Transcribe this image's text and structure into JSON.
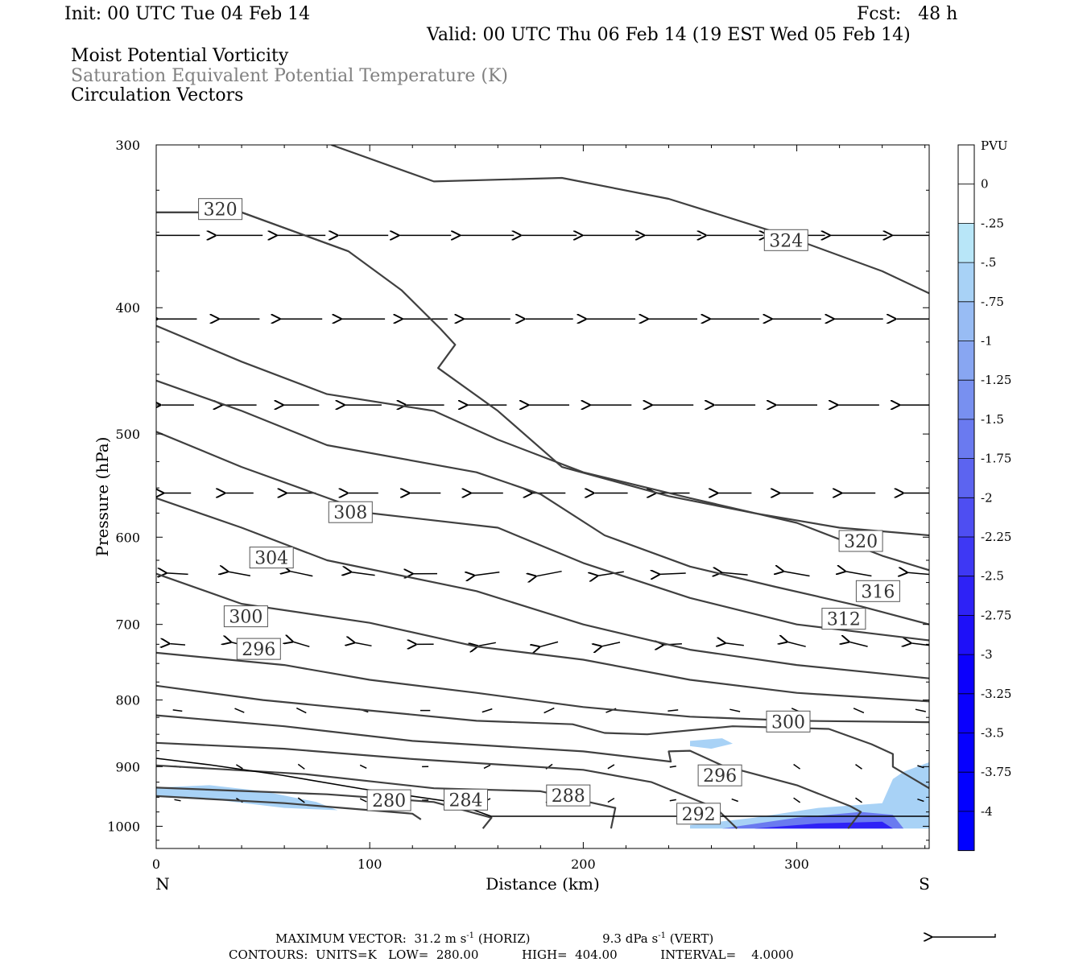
{
  "header": {
    "init": "Init: 00 UTC Tue 04 Feb 14",
    "fcst": "Fcst:   48 h",
    "valid": "Valid: 00 UTC Thu 06 Feb 14 (19 EST Wed 05 Feb 14)",
    "field1": "Moist Potential Vorticity",
    "field2": "Saturation Equivalent Potential Temperature (K)",
    "field3": "Circulation Vectors"
  },
  "colors": {
    "contour": "#404040",
    "mpv_shades": [
      "#b8e6f8",
      "#a8d2f6",
      "#98bcf4",
      "#88a6f2",
      "#7890f0",
      "#6a7af0",
      "#5c64f0",
      "#4e4ef2",
      "#3e38f4",
      "#2e22f6",
      "#1e10f8",
      "#0c00fc"
    ]
  },
  "chart_data": {
    "type": "cross-section",
    "xlabel": "Distance (km)",
    "ylabel": "Pressure (hPa)",
    "xlim": [
      0,
      362
    ],
    "ylim": [
      1040,
      300
    ],
    "y_scale": "log",
    "x_ticks": [
      "0",
      "100",
      "200",
      "300"
    ],
    "y_ticks": [
      "300",
      "400",
      "500",
      "600",
      "700",
      "800",
      "900",
      "1000"
    ],
    "end_labels": {
      "left": "N",
      "right": "S"
    },
    "colorbar": {
      "title": "PVU",
      "labels": [
        "0",
        "-.25",
        "-.5",
        "-.75",
        "-1",
        "-1.25",
        "-1.5",
        "-1.75",
        "-2",
        "-2.25",
        "-2.5",
        "-2.75",
        "-3",
        "-3.25",
        "-3.5",
        "-3.75",
        "-4"
      ]
    },
    "theta_es_contours": [
      {
        "label": "280",
        "points": [
          [
            0,
            948
          ],
          [
            60,
            960
          ],
          [
            120,
            978
          ],
          [
            124,
            988
          ]
        ],
        "label_at": [
          109,
          955
        ]
      },
      {
        "label": "284",
        "points": [
          [
            0,
            934
          ],
          [
            80,
            945
          ],
          [
            130,
            958
          ],
          [
            157,
            985
          ],
          [
            153,
            1004
          ]
        ],
        "label_at": [
          145,
          954
        ]
      },
      {
        "label": "288",
        "points": [
          [
            0,
            898
          ],
          [
            70,
            912
          ],
          [
            130,
            935
          ],
          [
            180,
            940
          ],
          [
            215,
            968
          ],
          [
            213,
            1004
          ]
        ],
        "label_at": [
          193,
          947
        ]
      },
      {
        "label": "292",
        "points": [
          [
            0,
            863
          ],
          [
            60,
            872
          ],
          [
            120,
            888
          ],
          [
            200,
            905
          ],
          [
            232,
            925
          ],
          [
            262,
            968
          ],
          [
            272,
            1004
          ]
        ],
        "label_at": [
          254,
          978
        ]
      },
      {
        "label": "296",
        "points": [
          [
            0,
            822
          ],
          [
            60,
            838
          ],
          [
            120,
            860
          ],
          [
            200,
            876
          ],
          [
            241,
            892
          ],
          [
            240,
            876
          ],
          [
            250,
            875
          ],
          [
            265,
            898
          ],
          [
            300,
            930
          ],
          [
            325,
            965
          ],
          [
            330,
            975
          ],
          [
            324,
            1004
          ]
        ],
        "label_at": [
          264,
          914
        ]
      },
      {
        "label": "300",
        "points": [
          [
            0,
            780
          ],
          [
            50,
            800
          ],
          [
            100,
            815
          ],
          [
            150,
            830
          ],
          [
            195,
            835
          ],
          [
            210,
            848
          ],
          [
            230,
            850
          ],
          [
            270,
            838
          ],
          [
            315,
            842
          ],
          [
            335,
            865
          ],
          [
            345,
            880
          ],
          [
            345,
            900
          ],
          [
            362,
            935
          ]
        ],
        "label_at": [
          296,
          831
        ]
      },
      {
        "label": "296",
        "points": [
          [
            0,
            736
          ],
          [
            60,
            752
          ],
          [
            100,
            772
          ],
          [
            150,
            790
          ],
          [
            200,
            810
          ],
          [
            250,
            824
          ],
          [
            300,
            830
          ],
          [
            362,
            832
          ]
        ],
        "label_at": [
          48,
          731
        ]
      },
      {
        "label": "300",
        "points": [
          [
            0,
            640
          ],
          [
            40,
            675
          ],
          [
            100,
            698
          ],
          [
            150,
            728
          ],
          [
            200,
            745
          ],
          [
            250,
            772
          ],
          [
            300,
            790
          ],
          [
            362,
            802
          ]
        ],
        "label_at": [
          42,
          690
        ]
      },
      {
        "label": "304",
        "points": [
          [
            0,
            560
          ],
          [
            40,
            590
          ],
          [
            80,
            625
          ],
          [
            150,
            660
          ],
          [
            200,
            700
          ],
          [
            250,
            732
          ],
          [
            300,
            752
          ],
          [
            362,
            770
          ]
        ],
        "label_at": [
          54,
          622
        ]
      },
      {
        "label": "308",
        "points": [
          [
            0,
            498
          ],
          [
            40,
            530
          ],
          [
            100,
            575
          ],
          [
            160,
            590
          ],
          [
            200,
            628
          ],
          [
            250,
            668
          ],
          [
            300,
            700
          ],
          [
            362,
            720
          ]
        ],
        "label_at": [
          91,
          574
        ]
      },
      {
        "label": "312",
        "points": [
          [
            0,
            455
          ],
          [
            40,
            480
          ],
          [
            80,
            510
          ],
          [
            150,
            535
          ],
          [
            180,
            556
          ],
          [
            210,
            598
          ],
          [
            250,
            632
          ],
          [
            290,
            655
          ],
          [
            330,
            678
          ],
          [
            362,
            700
          ]
        ],
        "label_at": [
          322,
          693
        ]
      },
      {
        "label": "316",
        "points": [
          [
            0,
            413
          ],
          [
            40,
            440
          ],
          [
            80,
            466
          ],
          [
            130,
            480
          ],
          [
            160,
            505
          ],
          [
            200,
            535
          ],
          [
            250,
            560
          ],
          [
            300,
            585
          ],
          [
            340,
            620
          ],
          [
            362,
            636
          ]
        ],
        "label_at": [
          338,
          660
        ]
      },
      {
        "label": "320",
        "points": [
          [
            0,
            338
          ],
          [
            40,
            338
          ],
          [
            90,
            362
          ],
          [
            115,
            388
          ],
          [
            133,
            415
          ],
          [
            140,
            427
          ],
          [
            132,
            445
          ],
          [
            160,
            480
          ],
          [
            190,
            530
          ],
          [
            240,
            558
          ],
          [
            280,
            575
          ],
          [
            320,
            590
          ],
          [
            362,
            598
          ]
        ],
        "label_at": [
          330,
          604
        ]
      },
      {
        "label": "320",
        "points": [
          [
            0,
            338
          ],
          [
            40,
            338
          ],
          [
            90,
            362
          ]
        ],
        "label_at": [
          30,
          336
        ]
      },
      {
        "label": "324",
        "points": [
          [
            82,
            300
          ],
          [
            130,
            320
          ],
          [
            190,
            318
          ],
          [
            240,
            330
          ],
          [
            290,
            350
          ],
          [
            340,
            375
          ],
          [
            362,
            390
          ]
        ],
        "label_at": [
          295,
          355
        ]
      }
    ],
    "mpv_shading": [
      {
        "value": -0.5,
        "points": [
          [
            0,
            934
          ],
          [
            25,
            930
          ],
          [
            50,
            940
          ],
          [
            75,
            958
          ],
          [
            85,
            972
          ],
          [
            60,
            968
          ],
          [
            30,
            955
          ],
          [
            0,
            948
          ]
        ]
      },
      {
        "value": -0.5,
        "points": [
          [
            250,
            998
          ],
          [
            280,
            985
          ],
          [
            310,
            968
          ],
          [
            340,
            960
          ],
          [
            345,
            920
          ],
          [
            350,
            908
          ],
          [
            362,
            893
          ],
          [
            362,
            1004
          ],
          [
            250,
            1004
          ]
        ]
      },
      {
        "value": -0.5,
        "points": [
          [
            250,
            860
          ],
          [
            265,
            856
          ],
          [
            270,
            864
          ],
          [
            260,
            872
          ],
          [
            250,
            868
          ]
        ]
      },
      {
        "value": -1.5,
        "points": [
          [
            265,
            1004
          ],
          [
            300,
            985
          ],
          [
            330,
            975
          ],
          [
            345,
            980
          ],
          [
            350,
            1004
          ]
        ]
      },
      {
        "value": -2.5,
        "points": [
          [
            280,
            1004
          ],
          [
            310,
            995
          ],
          [
            340,
            992
          ],
          [
            345,
            1004
          ]
        ]
      }
    ],
    "max_vector_horiz": "31.2",
    "max_vector_horiz_unit": "m s",
    "max_vector_horiz_exp": "-1",
    "max_vector_vert": "9.3",
    "max_vector_vert_unit": "dPa s",
    "max_vector_vert_exp": "-1",
    "contour_units": "K",
    "contour_low": "280.00",
    "contour_high": "404.00",
    "contour_interval": "4.0000"
  },
  "footer": {
    "max_vector_label": "MAXIMUM VECTOR:",
    "horiz_tag": "(HORIZ)",
    "vert_tag": "(VERT)",
    "contours_label": "CONTOURS:",
    "units_label": "UNITS=",
    "low_label": "LOW=",
    "high_label": "HIGH=",
    "interval_label": "INTERVAL="
  }
}
